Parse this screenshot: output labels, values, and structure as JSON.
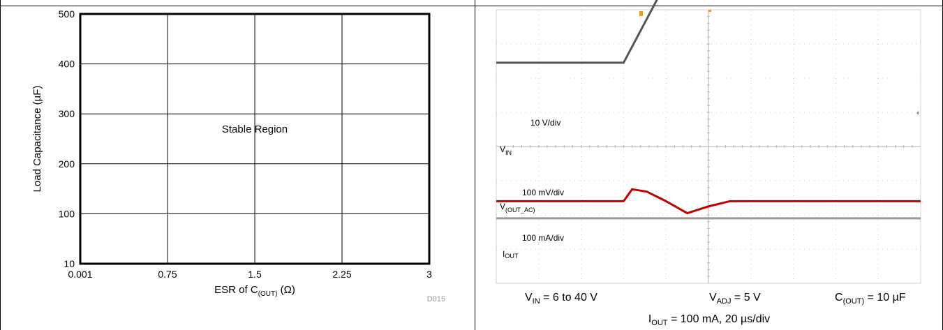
{
  "chart_data": [
    {
      "type": "area",
      "title": "",
      "xlabel": {
        "main": "ESR of C",
        "sub": "(OUT)",
        "unit": " (Ω)"
      },
      "ylabel": "Load Capacitance (µF)",
      "x_ticks": [
        "0.001",
        "0.75",
        "1.5",
        "2.25",
        "3"
      ],
      "y_ticks": [
        "10",
        "100",
        "200",
        "300",
        "400",
        "500"
      ],
      "x_tick_values": [
        0.001,
        0.75,
        1.5,
        2.25,
        3
      ],
      "y_tick_values": [
        10,
        100,
        200,
        300,
        400,
        500
      ],
      "xlim": [
        0.001,
        3
      ],
      "ylim": [
        10,
        500
      ],
      "grid": true,
      "region_label": "Stable Region",
      "figure_id": "D015"
    },
    {
      "type": "line",
      "title": "",
      "grid": true,
      "divisions": {
        "x": 10,
        "y": 8
      },
      "series": [
        {
          "name": "VIN",
          "label": {
            "main": "V",
            "sub": "IN"
          },
          "scale": "10 V/div",
          "color": "#555555",
          "x": [
            0,
            3,
            4.9,
            10
          ],
          "y": [
            2.45,
            2.45,
            6.9,
            6.9
          ]
        },
        {
          "name": "V(OUT_AC)",
          "label": {
            "main": "V",
            "sub": "(OUT_AC)"
          },
          "scale": "100 mV/div",
          "color": "#c00000",
          "x": [
            0,
            3,
            3.2,
            3.55,
            4.0,
            4.5,
            5.0,
            5.5,
            6.0,
            10
          ],
          "y": [
            -1.6,
            -1.6,
            -1.25,
            -1.32,
            -1.6,
            -1.95,
            -1.75,
            -1.6,
            -1.6,
            -1.6
          ]
        },
        {
          "name": "IOUT",
          "label": {
            "main": "I",
            "sub": "OUT"
          },
          "scale": "100 mA/div",
          "color": "#999999",
          "x": [
            0,
            10
          ],
          "y": [
            -2.1,
            -2.1
          ]
        }
      ],
      "caption": {
        "vin": {
          "main": "V",
          "sub": "IN",
          "rest": " = 6 to 40 V"
        },
        "vadj": {
          "main": "V",
          "sub": "ADJ",
          "rest": " = 5 V"
        },
        "cout": {
          "main": "C",
          "sub": "(OUT)",
          "rest": " = 10 µF"
        },
        "line2": {
          "main": "I",
          "sub": "OUT",
          "rest": " = 100 mA, 20 µs/div"
        }
      }
    }
  ]
}
